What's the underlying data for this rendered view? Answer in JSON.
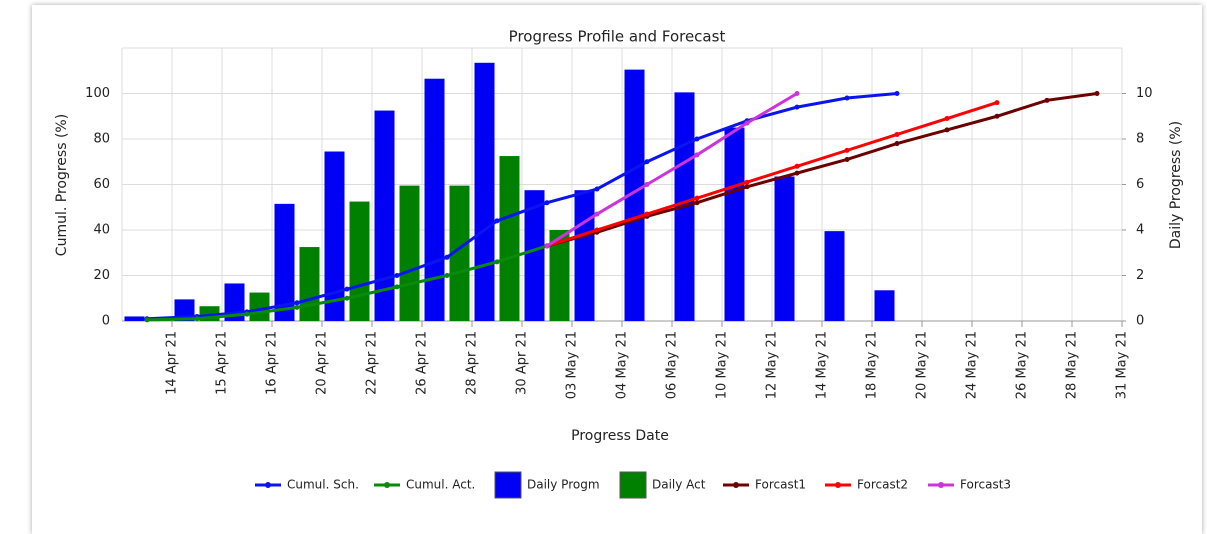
{
  "chart_data": {
    "type": "combo",
    "title": "Progress Profile and Forecast",
    "x_label": "Progress Date",
    "y_label": "Cumul. Progress (%)",
    "y2_label": "Daily Progress (%)",
    "categories": [
      "14 Apr 21",
      "15 Apr 21",
      "16 Apr 21",
      "20 Apr 21",
      "22 Apr 21",
      "26 Apr 21",
      "28 Apr 21",
      "30 Apr 21",
      "03 May 21",
      "04 May 21",
      "06 May 21",
      "10 May 21",
      "12 May 21",
      "14 May 21",
      "18 May 21",
      "20 May 21",
      "24 May 21",
      "26 May 21",
      "28 May 21",
      "31 May 21"
    ],
    "ylim": [
      0,
      120
    ],
    "yticks": [
      0,
      20,
      40,
      60,
      80,
      100
    ],
    "y2lim": [
      0,
      12
    ],
    "y2ticks": [
      0,
      2,
      4,
      6,
      8,
      10
    ],
    "grid": true,
    "legend": "bottom",
    "series": [
      {
        "name": "Cumul. Sch.",
        "kind": "line",
        "color": "#0a14f0",
        "values": [
          1,
          2,
          4,
          8,
          14,
          20,
          28,
          44,
          52,
          58,
          70,
          80,
          88,
          94,
          98,
          100,
          null,
          null,
          null,
          null
        ]
      },
      {
        "name": "Cumul. Act.",
        "kind": "line",
        "color": "#0a8a0a",
        "values": [
          0.5,
          1,
          3,
          6,
          10,
          15,
          20,
          26,
          33,
          null,
          null,
          null,
          null,
          null,
          null,
          null,
          null,
          null,
          null,
          null
        ]
      },
      {
        "name": "Daily Progm",
        "kind": "bar",
        "axis": "y2",
        "color": "#0000f5",
        "values": [
          0.2,
          0.95,
          1.65,
          5.15,
          7.45,
          9.25,
          10.65,
          11.35,
          5.75,
          5.75,
          11.05,
          10.05,
          8.5,
          6.35,
          3.95,
          1.35,
          null,
          null,
          null,
          null
        ]
      },
      {
        "name": "Daily Act",
        "kind": "bar",
        "axis": "y2",
        "color": "#008000",
        "values": [
          0.05,
          0.65,
          1.25,
          3.25,
          5.25,
          5.95,
          5.95,
          7.25,
          4.0,
          null,
          null,
          null,
          null,
          null,
          null,
          null,
          null,
          null,
          null,
          null
        ]
      },
      {
        "name": "Forcast1",
        "kind": "line",
        "color": "#6b0000",
        "values": [
          null,
          null,
          null,
          null,
          null,
          null,
          null,
          null,
          33,
          39,
          46,
          52,
          59,
          65,
          71,
          78,
          84,
          90,
          97,
          100
        ]
      },
      {
        "name": "Forcast2",
        "kind": "line",
        "color": "#ff0000",
        "values": [
          null,
          null,
          null,
          null,
          null,
          null,
          null,
          null,
          33,
          40,
          47,
          54,
          61,
          68,
          75,
          82,
          89,
          96,
          null,
          null
        ]
      },
      {
        "name": "Forcast3",
        "kind": "line",
        "color": "#cc33dd",
        "values": [
          null,
          null,
          null,
          null,
          null,
          null,
          null,
          null,
          33,
          47,
          60,
          73,
          87,
          100,
          null,
          null,
          null,
          null,
          null,
          null
        ]
      }
    ]
  }
}
